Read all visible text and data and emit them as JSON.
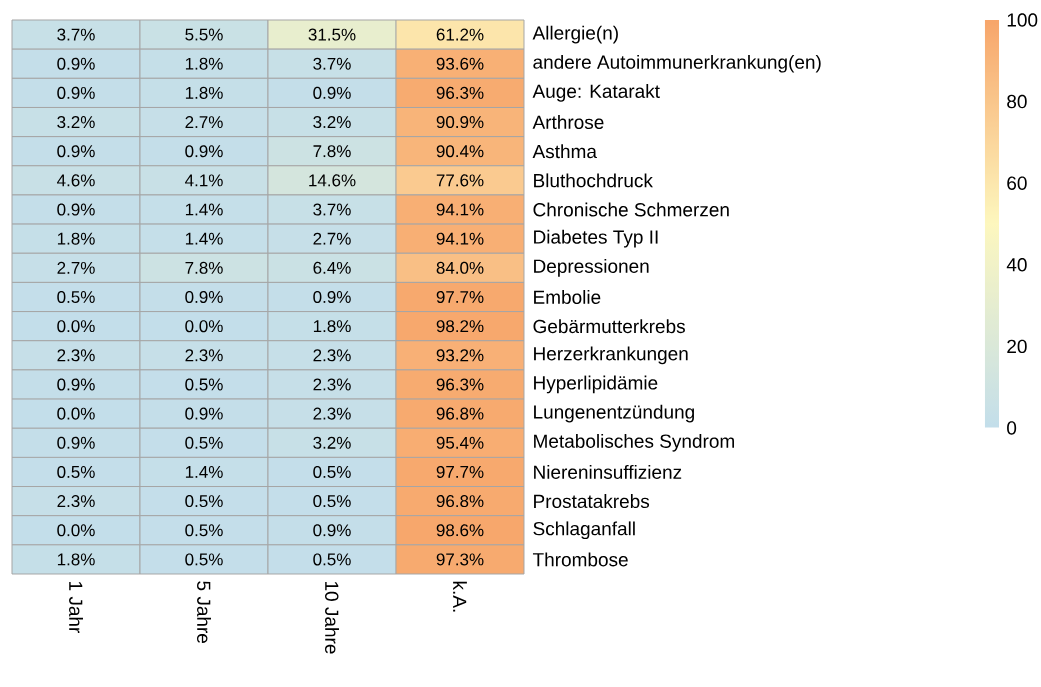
{
  "chart_data": {
    "type": "heatmap",
    "categories": [
      "1 Jahr",
      "5 Jahre",
      "10 Jahre",
      "k.A."
    ],
    "y_categories": [
      "Allergie(n)",
      "andere Autoimmunerkrankung(en)",
      "Auge: Katarakt",
      "Arthrose",
      "Asthma",
      "Bluthochdruck",
      "Chronische Schmerzen",
      "Diabetes Typ II",
      "Depressionen",
      "Embolie",
      "Gebärmutterkrebs",
      "Herzerkrankungen",
      "Hyperlipidämie",
      "Lungenentzündung",
      "Metabolisches Syndrom",
      "Niereninsuffizienz",
      "Prostatakrebs",
      "Schlaganfall",
      "Thrombose"
    ],
    "cells": [
      [
        3.7,
        5.5,
        31.5,
        61.2
      ],
      [
        0.9,
        1.8,
        3.7,
        93.6
      ],
      [
        0.9,
        1.8,
        0.9,
        96.3
      ],
      [
        3.2,
        2.7,
        3.2,
        90.9
      ],
      [
        0.9,
        0.9,
        7.8,
        90.4
      ],
      [
        4.6,
        4.1,
        14.6,
        77.6
      ],
      [
        0.9,
        1.4,
        3.7,
        94.1
      ],
      [
        1.8,
        1.4,
        2.7,
        94.1
      ],
      [
        2.7,
        7.8,
        6.4,
        84.0
      ],
      [
        0.5,
        0.9,
        0.9,
        97.7
      ],
      [
        0.0,
        0.0,
        1.8,
        98.2
      ],
      [
        2.3,
        2.3,
        2.3,
        93.2
      ],
      [
        0.9,
        0.5,
        2.3,
        96.3
      ],
      [
        0.0,
        0.9,
        2.3,
        96.8
      ],
      [
        0.9,
        0.5,
        3.2,
        95.4
      ],
      [
        0.5,
        1.4,
        0.5,
        97.7
      ],
      [
        2.3,
        0.5,
        0.5,
        96.8
      ],
      [
        0.0,
        0.5,
        0.9,
        98.6
      ],
      [
        1.8,
        0.5,
        0.5,
        97.3
      ]
    ],
    "cell_labels": [
      [
        "3.7%",
        "5.5%",
        "31.5%",
        "61.2%"
      ],
      [
        "0.9%",
        "1.8%",
        "3.7%",
        "93.6%"
      ],
      [
        "0.9%",
        "1.8%",
        "0.9%",
        "96.3%"
      ],
      [
        "3.2%",
        "2.7%",
        "3.2%",
        "90.9%"
      ],
      [
        "0.9%",
        "0.9%",
        "7.8%",
        "90.4%"
      ],
      [
        "4.6%",
        "4.1%",
        "14.6%",
        "77.6%"
      ],
      [
        "0.9%",
        "1.4%",
        "3.7%",
        "94.1%"
      ],
      [
        "1.8%",
        "1.4%",
        "2.7%",
        "94.1%"
      ],
      [
        "2.7%",
        "7.8%",
        "6.4%",
        "84.0%"
      ],
      [
        "0.5%",
        "0.9%",
        "0.9%",
        "97.7%"
      ],
      [
        "0.0%",
        "0.0%",
        "1.8%",
        "98.2%"
      ],
      [
        "2.3%",
        "2.3%",
        "2.3%",
        "93.2%"
      ],
      [
        "0.9%",
        "0.5%",
        "2.3%",
        "96.3%"
      ],
      [
        "0.0%",
        "0.9%",
        "2.3%",
        "96.8%"
      ],
      [
        "0.9%",
        "0.5%",
        "3.2%",
        "95.4%"
      ],
      [
        "0.5%",
        "1.4%",
        "0.5%",
        "97.7%"
      ],
      [
        "2.3%",
        "0.5%",
        "0.5%",
        "96.8%"
      ],
      [
        "0.0%",
        "0.5%",
        "0.9%",
        "98.6%"
      ],
      [
        "1.8%",
        "0.5%",
        "0.5%",
        "97.3%"
      ]
    ],
    "clim": [
      0,
      100
    ],
    "cticks": [
      0,
      20,
      40,
      60,
      80,
      100
    ]
  }
}
